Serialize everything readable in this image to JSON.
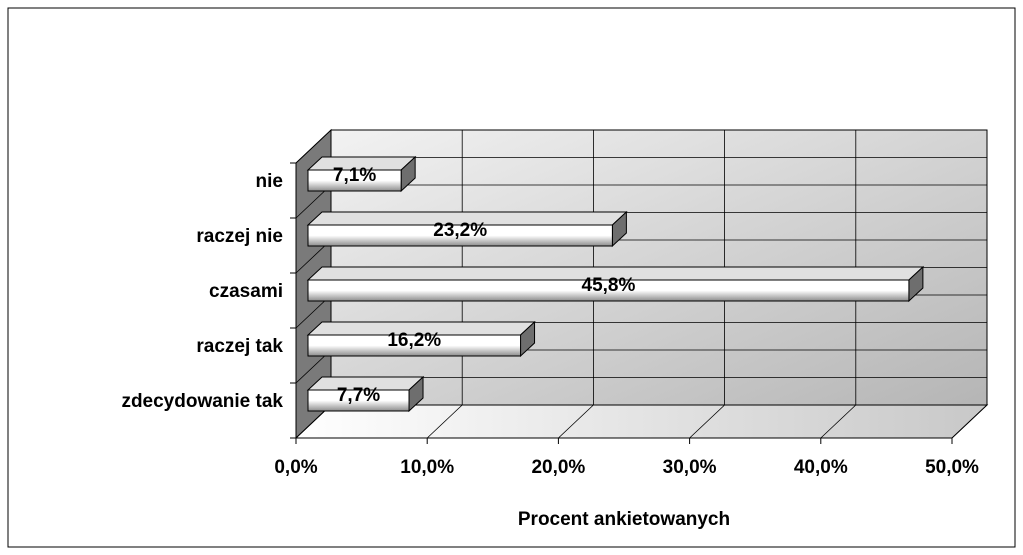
{
  "chart_data": {
    "type": "bar",
    "orientation": "horizontal",
    "xlabel": "Procent ankietowanych",
    "categories": [
      "zdecydowanie tak",
      "raczej tak",
      "czasami",
      "raczej nie",
      "nie"
    ],
    "values": [
      7.7,
      16.2,
      45.8,
      23.2,
      7.1
    ],
    "value_labels": [
      "7,7%",
      "16,2%",
      "45,8%",
      "23,2%",
      "7,1%"
    ],
    "color": "#ffffff",
    "xlim": [
      0,
      50
    ],
    "xticks": [
      {
        "value": 0,
        "label": "0,0%"
      },
      {
        "value": 10,
        "label": "10,0%"
      },
      {
        "value": 20,
        "label": "20,0%"
      },
      {
        "value": 30,
        "label": "30,0%"
      },
      {
        "value": 40,
        "label": "40,0%"
      },
      {
        "value": 50,
        "label": "50,0%"
      }
    ],
    "grid": true
  }
}
